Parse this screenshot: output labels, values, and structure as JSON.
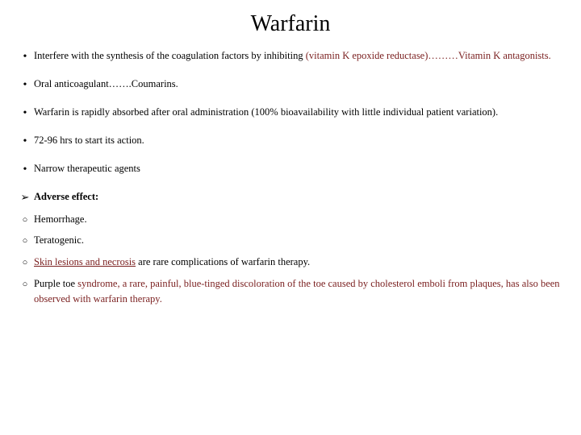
{
  "colors": {
    "background": "#ffffff",
    "text": "#000000",
    "highlight": "#7a1f1f"
  },
  "typography": {
    "family": "Times New Roman",
    "title_size_pt": 28,
    "body_size_pt": 12.5
  },
  "title": "Warfarin",
  "items": [
    {
      "bullet": "dot",
      "segments": [
        {
          "t": "Interfere with the synthesis of the coagulation factors by inhibiting "
        },
        {
          "t": "(vitamin K epoxide reductase)………Vitamin K antagonists.",
          "hl": true
        }
      ]
    },
    {
      "bullet": "dot",
      "segments": [
        {
          "t": "Oral anticoagulant…….Coumarins."
        }
      ]
    },
    {
      "bullet": "dot",
      "segments": [
        {
          "t": "Warfarin is rapidly absorbed after oral administration (100% bioavailability with little individual patient variation)."
        }
      ]
    },
    {
      "bullet": "dot",
      "segments": [
        {
          "t": "72-96 hrs to start its action."
        }
      ]
    },
    {
      "bullet": "dot",
      "segments": [
        {
          "t": "Narrow therapeutic agents"
        }
      ]
    },
    {
      "bullet": "arrow",
      "segments": [
        {
          "t": "Adverse effect:",
          "bold": true
        }
      ]
    },
    {
      "bullet": "circ",
      "segments": [
        {
          "t": "Hemorrhage."
        }
      ]
    },
    {
      "bullet": "circ",
      "segments": [
        {
          "t": "Teratogenic."
        }
      ]
    },
    {
      "bullet": "circ",
      "segments": [
        {
          "t": "Skin lesions and necrosis",
          "hl": true,
          "u": true
        },
        {
          "t": " are rare complications of warfarin therapy."
        }
      ]
    },
    {
      "bullet": "circ",
      "segments": [
        {
          "t": " Purple toe "
        },
        {
          "t": "syndrome, a rare, painful, blue-tinged discoloration of the toe caused by cholesterol emboli from plaques, has also been observed with warfarin therapy.",
          "hl": true
        }
      ]
    }
  ]
}
